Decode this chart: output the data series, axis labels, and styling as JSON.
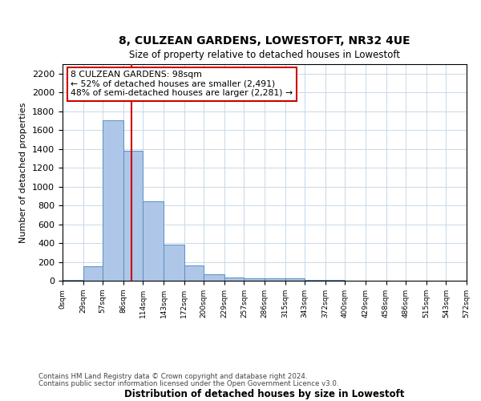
{
  "title": "8, CULZEAN GARDENS, LOWESTOFT, NR32 4UE",
  "subtitle": "Size of property relative to detached houses in Lowestoft",
  "xlabel": "Distribution of detached houses by size in Lowestoft",
  "ylabel": "Number of detached properties",
  "footer_line1": "Contains HM Land Registry data © Crown copyright and database right 2024.",
  "footer_line2": "Contains public sector information licensed under the Open Government Licence v3.0.",
  "bin_edges": [
    0,
    29,
    57,
    86,
    114,
    143,
    172,
    200,
    229,
    257,
    286,
    315,
    343,
    372,
    400,
    429,
    458,
    486,
    515,
    543,
    572
  ],
  "bar_heights": [
    10,
    150,
    1700,
    1380,
    840,
    380,
    160,
    65,
    30,
    25,
    25,
    25,
    5,
    5,
    0,
    0,
    0,
    0,
    0,
    0
  ],
  "bar_color": "#aec6e8",
  "bar_edge_color": "#5a8fc2",
  "property_size": 98,
  "annotation_line1": "8 CULZEAN GARDENS: 98sqm",
  "annotation_line2": "← 52% of detached houses are smaller (2,491)",
  "annotation_line3": "48% of semi-detached houses are larger (2,281) →",
  "annotation_box_color": "#ffffff",
  "annotation_box_edge_color": "#cc0000",
  "vline_color": "#cc0000",
  "grid_color": "#c8d8e8",
  "background_color": "#ffffff",
  "ylim": [
    0,
    2300
  ],
  "yticks": [
    0,
    200,
    400,
    600,
    800,
    1000,
    1200,
    1400,
    1600,
    1800,
    2000,
    2200
  ]
}
